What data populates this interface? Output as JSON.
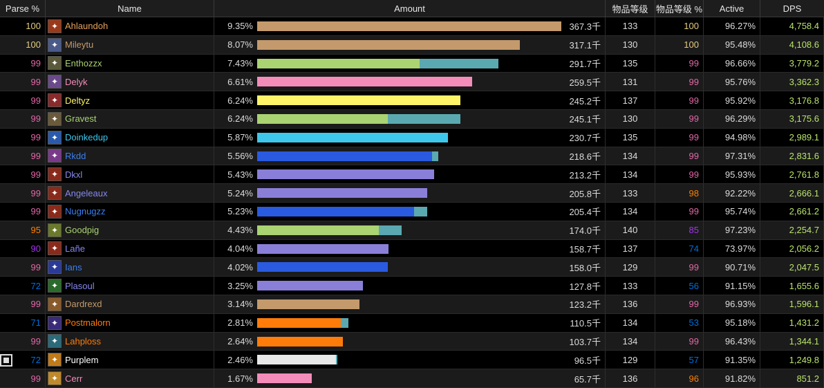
{
  "headers": {
    "parse": "Parse %",
    "name": "Name",
    "amount": "Amount",
    "ilvl": "物品等级",
    "ilvl_pct": "物品等级 %",
    "active": "Active",
    "dps": "DPS"
  },
  "rows": [
    {
      "parse": "100",
      "parse_color": "#e5cc80",
      "name": "Ahlaundoh",
      "name_color": "#e6a15a",
      "icon": "class-icon-warrior",
      "icon_bg": "#9a3a1a",
      "pct": "9.35%",
      "bar": 1.0,
      "bar_split": 0,
      "bar_color": "#c49a6c",
      "bar2_color": "#5aa9b0",
      "amount": "367.3千",
      "ilvl": "133",
      "ilvl_pct": "100",
      "ilvl_pct_color": "#e5cc80",
      "active": "96.27%",
      "dps": "4,758.4"
    },
    {
      "parse": "100",
      "parse_color": "#e5cc80",
      "name": "Mileytu",
      "name_color": "#c49a6c",
      "icon": "class-icon-warrior",
      "icon_bg": "#4a5a8a",
      "pct": "8.07%",
      "bar": 0.863,
      "bar_split": 0,
      "bar_color": "#c49a6c",
      "bar2_color": "#5aa9b0",
      "amount": "317.1千",
      "ilvl": "130",
      "ilvl_pct": "100",
      "ilvl_pct_color": "#e5cc80",
      "active": "95.48%",
      "dps": "4,108.6"
    },
    {
      "parse": "99",
      "parse_color": "#e268a8",
      "name": "Enthozzx",
      "name_color": "#aad372",
      "icon": "class-icon-hunter",
      "icon_bg": "#5a5a3a",
      "pct": "7.43%",
      "bar": 0.794,
      "bar_split": 0.535,
      "bar_color": "#aad372",
      "bar2_color": "#5aa9b0",
      "amount": "291.7千",
      "ilvl": "135",
      "ilvl_pct": "99",
      "ilvl_pct_color": "#e268a8",
      "active": "96.66%",
      "dps": "3,779.2"
    },
    {
      "parse": "99",
      "parse_color": "#e268a8",
      "name": "Delyk",
      "name_color": "#f48cba",
      "icon": "class-icon-paladin",
      "icon_bg": "#6a4a8a",
      "pct": "6.61%",
      "bar": 0.707,
      "bar_split": 0,
      "bar_color": "#f48cba",
      "bar2_color": "#5aa9b0",
      "amount": "259.5千",
      "ilvl": "131",
      "ilvl_pct": "99",
      "ilvl_pct_color": "#e268a8",
      "active": "95.76%",
      "dps": "3,362.3"
    },
    {
      "parse": "99",
      "parse_color": "#e268a8",
      "name": "Deltyz",
      "name_color": "#fff468",
      "icon": "class-icon-rogue",
      "icon_bg": "#8a2a2a",
      "pct": "6.24%",
      "bar": 0.668,
      "bar_split": 0,
      "bar_color": "#fff468",
      "bar2_color": "#5aa9b0",
      "amount": "245.2千",
      "ilvl": "137",
      "ilvl_pct": "99",
      "ilvl_pct_color": "#e268a8",
      "active": "95.92%",
      "dps": "3,176.8"
    },
    {
      "parse": "99",
      "parse_color": "#e268a8",
      "name": "Gravest",
      "name_color": "#aad372",
      "icon": "class-icon-hunter",
      "icon_bg": "#6a5a3a",
      "pct": "6.24%",
      "bar": 0.668,
      "bar_split": 0.43,
      "bar_color": "#aad372",
      "bar2_color": "#5aa9b0",
      "amount": "245.1千",
      "ilvl": "130",
      "ilvl_pct": "99",
      "ilvl_pct_color": "#e268a8",
      "active": "96.29%",
      "dps": "3,175.6"
    },
    {
      "parse": "99",
      "parse_color": "#e268a8",
      "name": "Doinkedup",
      "name_color": "#3fc7eb",
      "icon": "class-icon-mage",
      "icon_bg": "#2a5aaa",
      "pct": "5.87%",
      "bar": 0.628,
      "bar_split": 0,
      "bar_color": "#3fc7eb",
      "bar2_color": "#5aa9b0",
      "amount": "230.7千",
      "ilvl": "135",
      "ilvl_pct": "99",
      "ilvl_pct_color": "#e268a8",
      "active": "94.98%",
      "dps": "2,989.1"
    },
    {
      "parse": "99",
      "parse_color": "#e268a8",
      "name": "Rkdd",
      "name_color": "#3a7ff0",
      "icon": "class-icon-shaman",
      "icon_bg": "#7a3a8a",
      "pct": "5.56%",
      "bar": 0.595,
      "bar_split": 0.575,
      "bar_color": "#2a5ae0",
      "bar2_color": "#5aa9b0",
      "amount": "218.6千",
      "ilvl": "134",
      "ilvl_pct": "99",
      "ilvl_pct_color": "#e268a8",
      "active": "97.31%",
      "dps": "2,831.6"
    },
    {
      "parse": "99",
      "parse_color": "#e268a8",
      "name": "Dkxl",
      "name_color": "#8788ee",
      "icon": "class-icon-warlock",
      "icon_bg": "#8a2a1a",
      "pct": "5.43%",
      "bar": 0.581,
      "bar_split": 0,
      "bar_color": "#8a7fd8",
      "bar2_color": "#5aa9b0",
      "amount": "213.2千",
      "ilvl": "134",
      "ilvl_pct": "99",
      "ilvl_pct_color": "#e268a8",
      "active": "95.93%",
      "dps": "2,761.8"
    },
    {
      "parse": "99",
      "parse_color": "#e268a8",
      "name": "Angeleaux",
      "name_color": "#8788ee",
      "icon": "class-icon-warlock",
      "icon_bg": "#8a2a1a",
      "pct": "5.24%",
      "bar": 0.56,
      "bar_split": 0,
      "bar_color": "#8a7fd8",
      "bar2_color": "#5aa9b0",
      "amount": "205.8千",
      "ilvl": "133",
      "ilvl_pct": "98",
      "ilvl_pct_color": "#ff8000",
      "active": "92.22%",
      "dps": "2,666.1"
    },
    {
      "parse": "99",
      "parse_color": "#e268a8",
      "name": "Nugnugzz",
      "name_color": "#3a7ff0",
      "icon": "class-icon-warlock",
      "icon_bg": "#8a2a1a",
      "pct": "5.23%",
      "bar": 0.56,
      "bar_split": 0.515,
      "bar_color": "#2a5ae0",
      "bar2_color": "#5aa9b0",
      "amount": "205.4千",
      "ilvl": "134",
      "ilvl_pct": "99",
      "ilvl_pct_color": "#e268a8",
      "active": "95.74%",
      "dps": "2,661.2"
    },
    {
      "parse": "95",
      "parse_color": "#ff8000",
      "name": "Goodpig",
      "name_color": "#aad372",
      "icon": "class-icon-hunter",
      "icon_bg": "#6a7a2a",
      "pct": "4.43%",
      "bar": 0.474,
      "bar_split": 0.4,
      "bar_color": "#aad372",
      "bar2_color": "#5aa9b0",
      "amount": "174.0千",
      "ilvl": "140",
      "ilvl_pct": "85",
      "ilvl_pct_color": "#a335ee",
      "active": "97.23%",
      "dps": "2,254.7"
    },
    {
      "parse": "90",
      "parse_color": "#a335ee",
      "name": "Lañe",
      "name_color": "#8788ee",
      "icon": "class-icon-warlock",
      "icon_bg": "#8a2a1a",
      "pct": "4.04%",
      "bar": 0.432,
      "bar_split": 0,
      "bar_color": "#8a7fd8",
      "bar2_color": "#5aa9b0",
      "amount": "158.7千",
      "ilvl": "137",
      "ilvl_pct": "74",
      "ilvl_pct_color": "#0070dd",
      "active": "73.97%",
      "dps": "2,056.2"
    },
    {
      "parse": "99",
      "parse_color": "#e268a8",
      "name": "Ians",
      "name_color": "#3a7ff0",
      "icon": "class-icon-shaman",
      "icon_bg": "#2a3a9a",
      "pct": "4.02%",
      "bar": 0.43,
      "bar_split": 0,
      "bar_color": "#2a5ae0",
      "bar2_color": "#5aa9b0",
      "amount": "158.0千",
      "ilvl": "129",
      "ilvl_pct": "99",
      "ilvl_pct_color": "#e268a8",
      "active": "90.71%",
      "dps": "2,047.5"
    },
    {
      "parse": "72",
      "parse_color": "#0070dd",
      "name": "Plasoul",
      "name_color": "#8788ee",
      "icon": "class-icon-warlock",
      "icon_bg": "#2a6a2a",
      "pct": "3.25%",
      "bar": 0.348,
      "bar_split": 0,
      "bar_color": "#8a7fd8",
      "bar2_color": "#5aa9b0",
      "amount": "127.8千",
      "ilvl": "133",
      "ilvl_pct": "56",
      "ilvl_pct_color": "#0070dd",
      "active": "91.15%",
      "dps": "1,655.6"
    },
    {
      "parse": "99",
      "parse_color": "#e268a8",
      "name": "Dardrexd",
      "name_color": "#c49a6c",
      "icon": "class-icon-warrior",
      "icon_bg": "#8a5a2a",
      "pct": "3.14%",
      "bar": 0.336,
      "bar_split": 0,
      "bar_color": "#c49a6c",
      "bar2_color": "#5aa9b0",
      "amount": "123.2千",
      "ilvl": "136",
      "ilvl_pct": "99",
      "ilvl_pct_color": "#e268a8",
      "active": "96.93%",
      "dps": "1,596.1"
    },
    {
      "parse": "71",
      "parse_color": "#0070dd",
      "name": "Postmalorn",
      "name_color": "#ff7c0a",
      "icon": "class-icon-druid",
      "icon_bg": "#3a2a7a",
      "pct": "2.81%",
      "bar": 0.3,
      "bar_split": 0.275,
      "bar_color": "#ff7c0a",
      "bar2_color": "#5aa9b0",
      "amount": "110.5千",
      "ilvl": "134",
      "ilvl_pct": "53",
      "ilvl_pct_color": "#0070dd",
      "active": "95.18%",
      "dps": "1,431.2"
    },
    {
      "parse": "99",
      "parse_color": "#e268a8",
      "name": "Lahploss",
      "name_color": "#ff7c0a",
      "icon": "class-icon-druid",
      "icon_bg": "#2a6a7a",
      "pct": "2.64%",
      "bar": 0.282,
      "bar_split": 0,
      "bar_color": "#ff7c0a",
      "bar2_color": "#5aa9b0",
      "amount": "103.7千",
      "ilvl": "134",
      "ilvl_pct": "99",
      "ilvl_pct_color": "#e268a8",
      "active": "96.43%",
      "dps": "1,344.1"
    },
    {
      "parse": "72",
      "parse_color": "#0070dd",
      "name": "Purplem",
      "name_color": "#ffffff",
      "icon": "class-icon-priest",
      "icon_bg": "#c07a1a",
      "pct": "2.46%",
      "bar": 0.263,
      "bar_split": 0.258,
      "bar_color": "#e8e8e8",
      "bar2_color": "#5aa9b0",
      "amount": "96.5千",
      "ilvl": "129",
      "ilvl_pct": "57",
      "ilvl_pct_color": "#0070dd",
      "active": "91.35%",
      "dps": "1,249.8"
    },
    {
      "parse": "99",
      "parse_color": "#e268a8",
      "name": "Cerr",
      "name_color": "#f48cba",
      "icon": "class-icon-paladin",
      "icon_bg": "#c08a2a",
      "pct": "1.67%",
      "bar": 0.179,
      "bar_split": 0,
      "bar_color": "#f48cba",
      "bar2_color": "#5aa9b0",
      "amount": "65.7千",
      "ilvl": "136",
      "ilvl_pct": "96",
      "ilvl_pct_color": "#ff8000",
      "active": "91.82%",
      "dps": "851.2"
    }
  ]
}
